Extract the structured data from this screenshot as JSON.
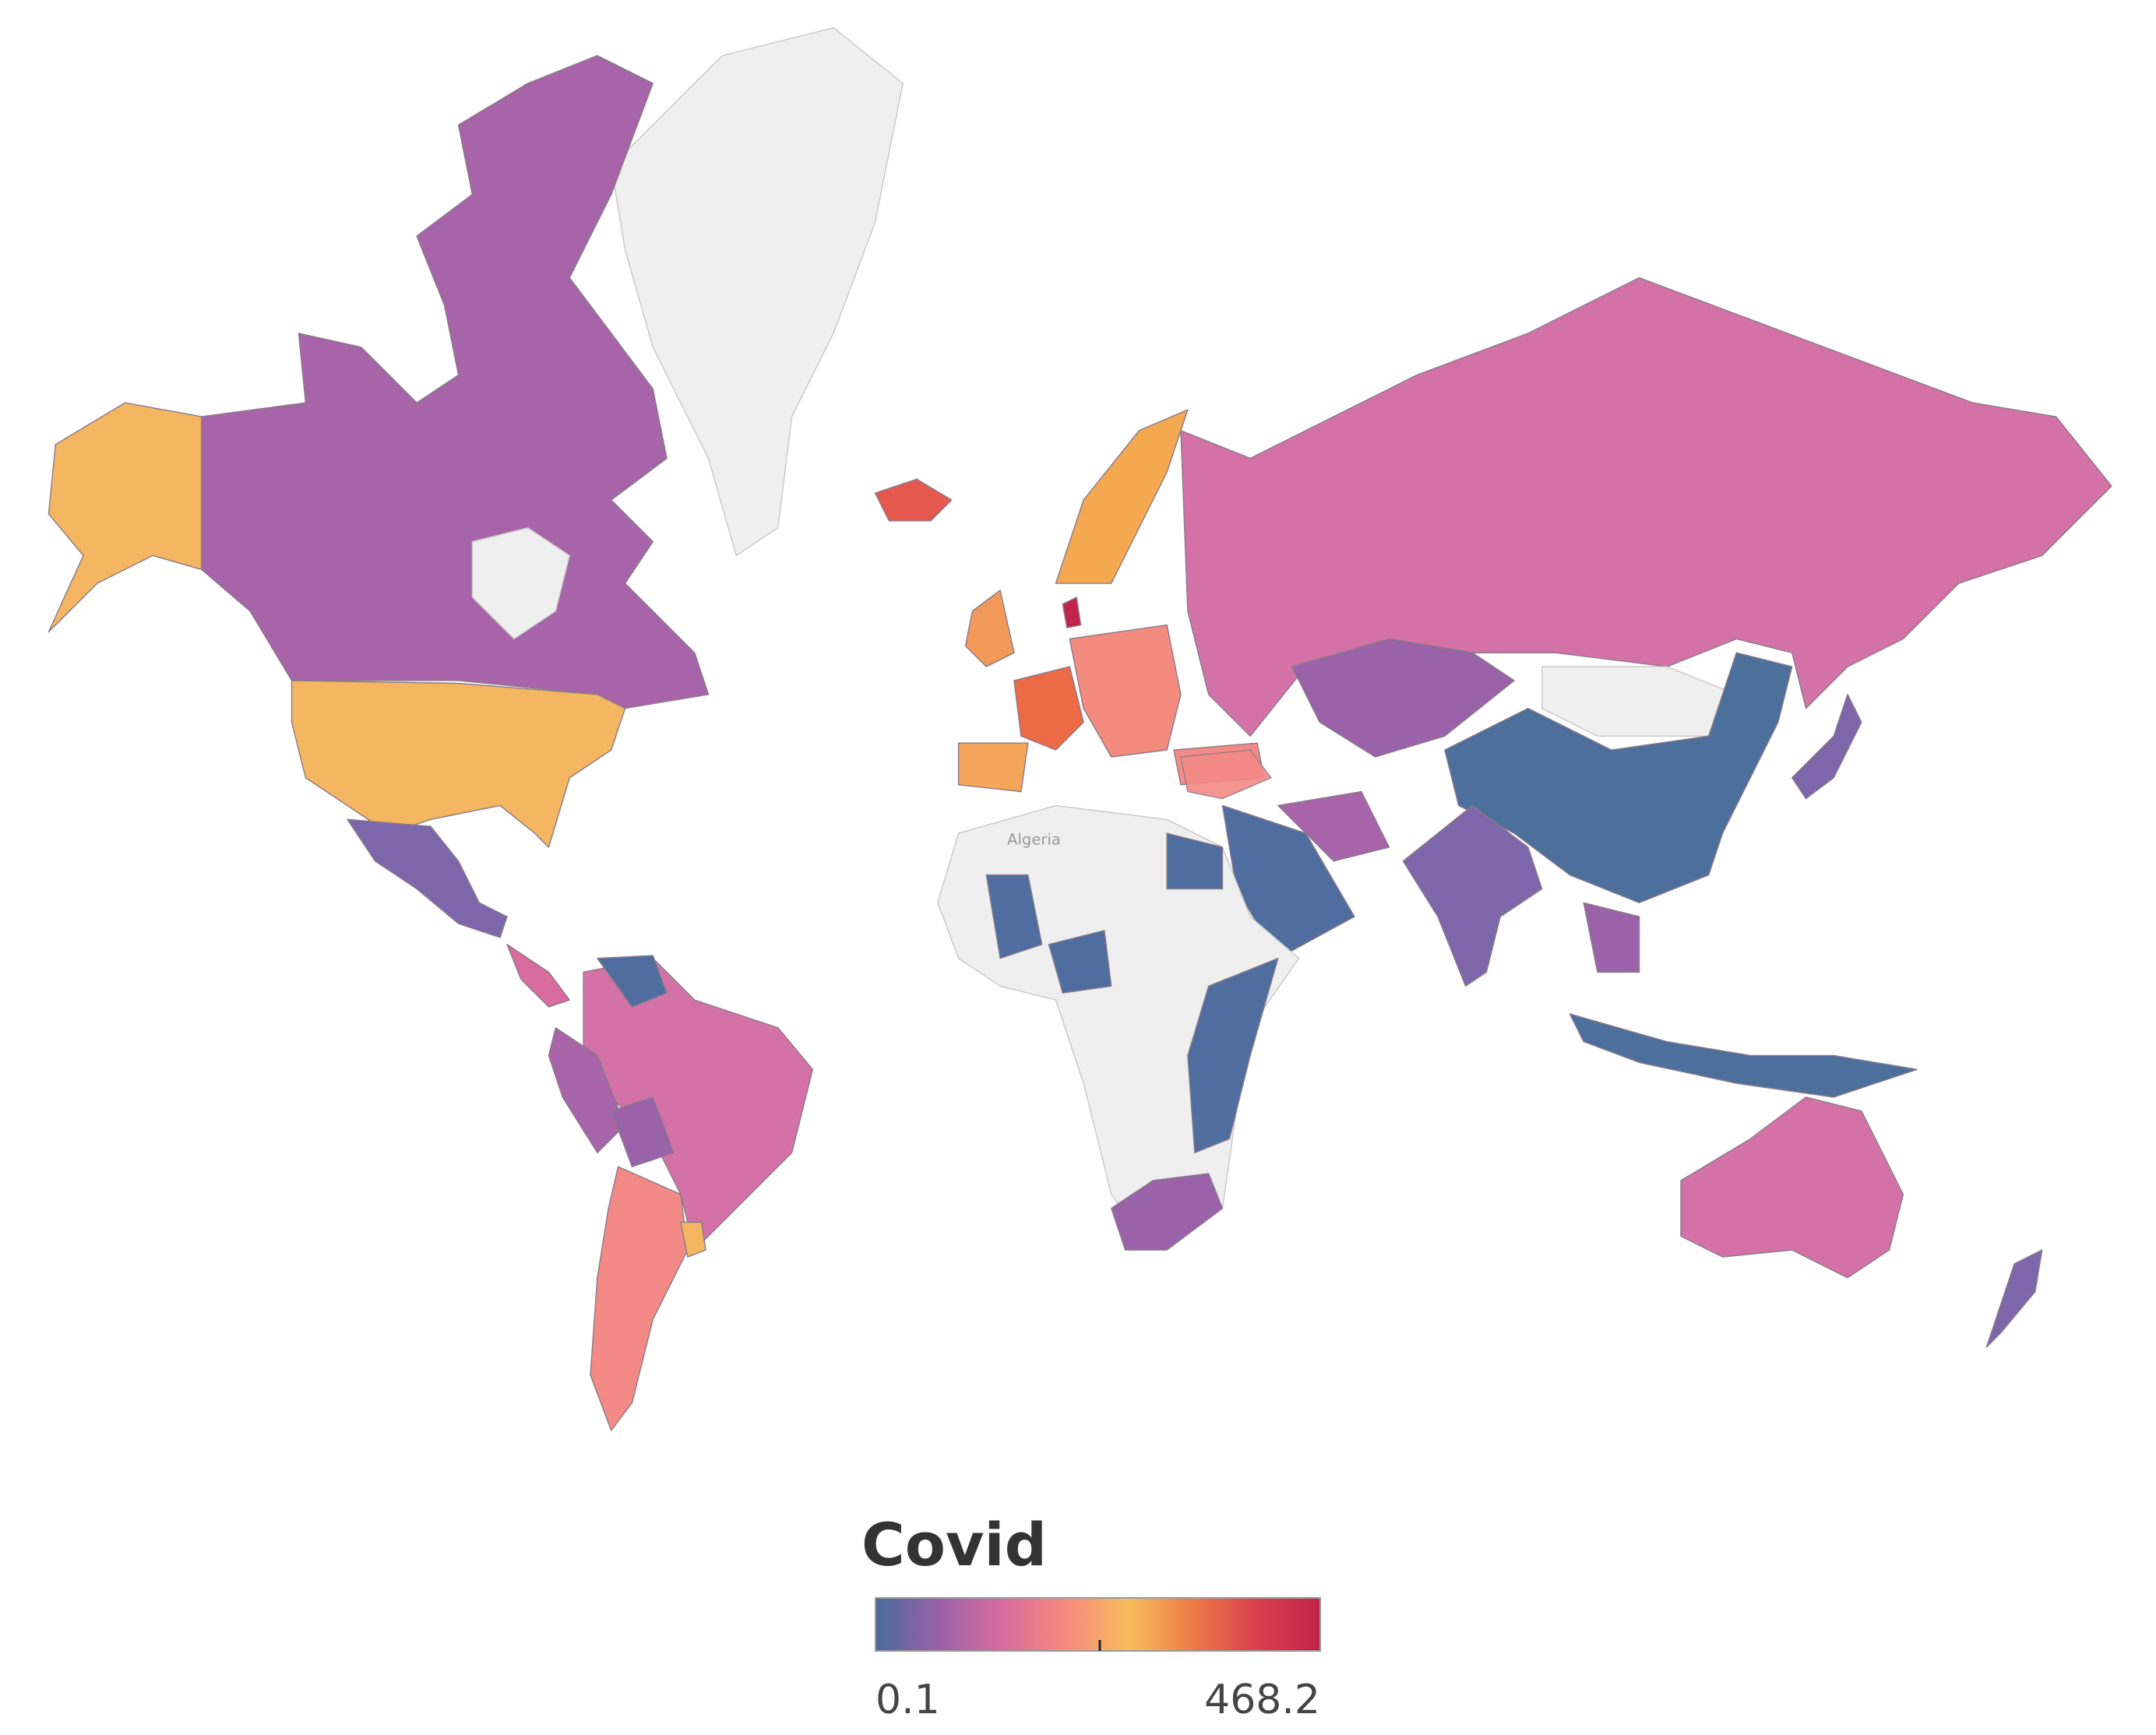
{
  "map_labels": [
    "Algeria"
  ],
  "legend": {
    "title": "Covid",
    "range": [
      0.1,
      468.2
    ],
    "colors": [
      "#4a6b9c",
      "#9a62a8",
      "#d86c9e",
      "#f88a7e",
      "#f6bd5c",
      "#ee7a48",
      "#d9404c",
      "#c0244a"
    ]
  }
}
